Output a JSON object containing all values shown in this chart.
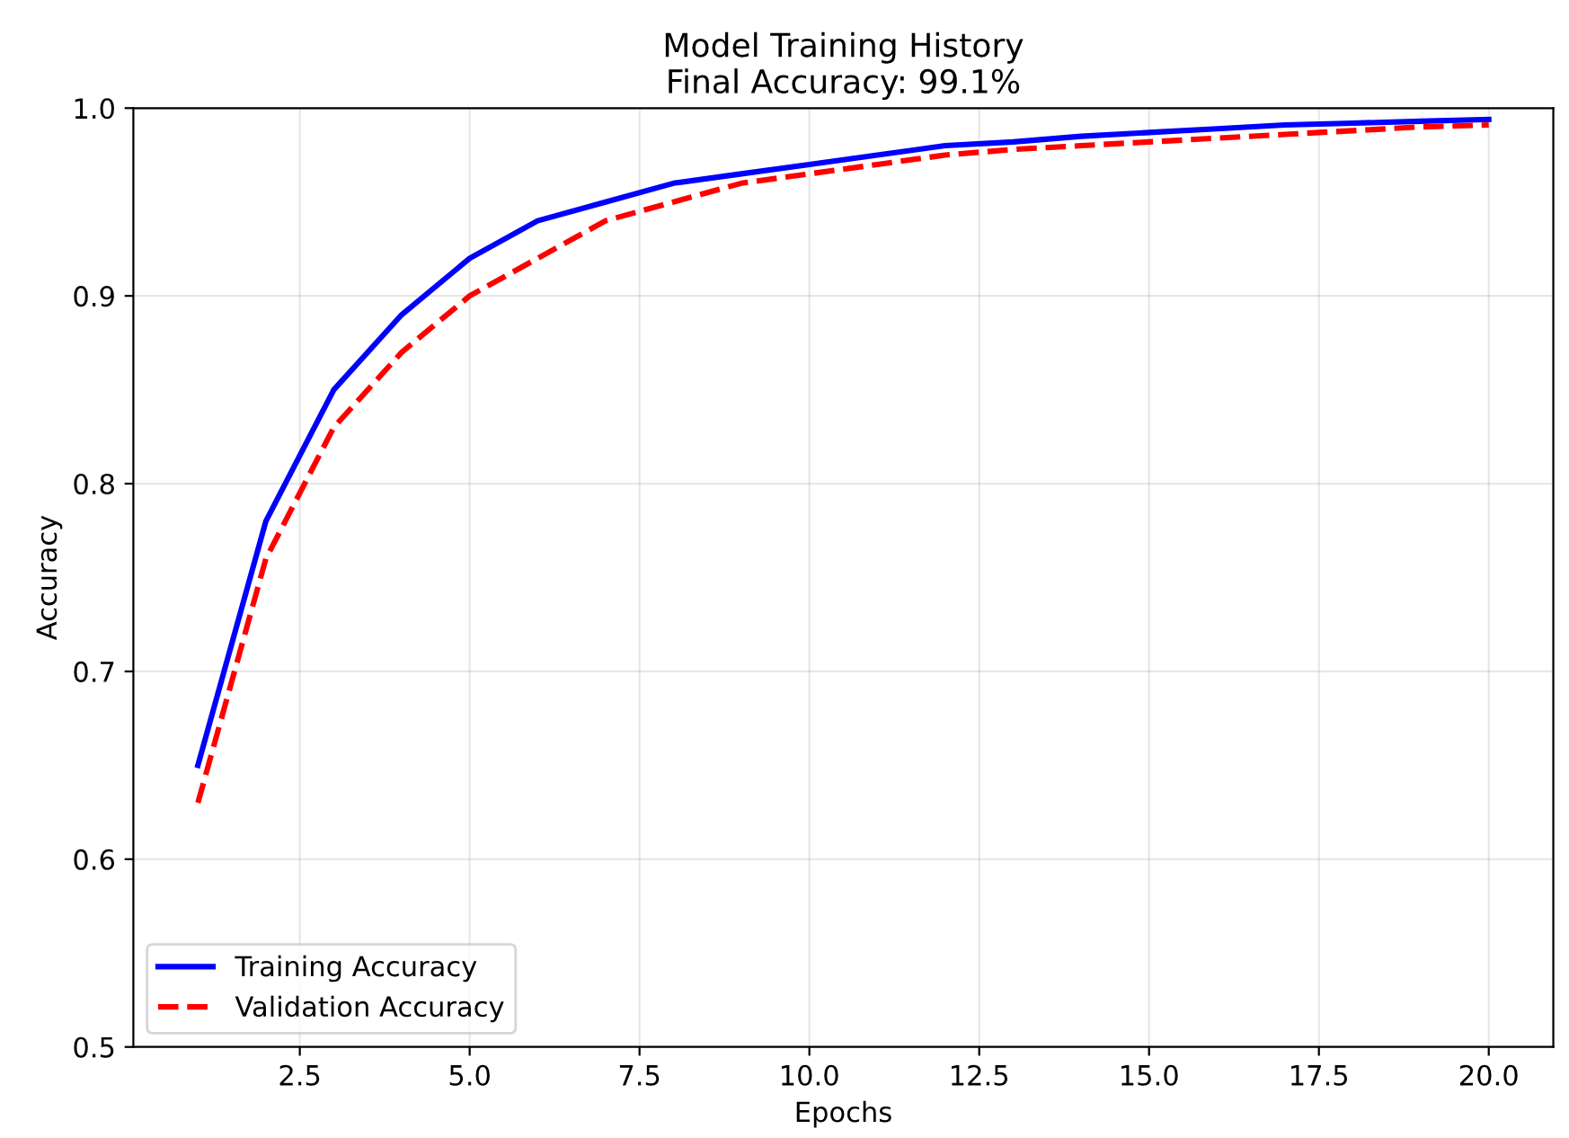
{
  "chart_data": {
    "type": "line",
    "title": "Model Training History\nFinal Accuracy: 99.1%",
    "xlabel": "Epochs",
    "ylabel": "Accuracy",
    "x": [
      1,
      2,
      3,
      4,
      5,
      6,
      7,
      8,
      9,
      10,
      11,
      12,
      13,
      14,
      15,
      16,
      17,
      18,
      19,
      20
    ],
    "series": [
      {
        "name": "Training Accuracy",
        "color": "#0000ff",
        "line_style": "solid",
        "values": [
          0.65,
          0.78,
          0.85,
          0.89,
          0.92,
          0.94,
          0.95,
          0.96,
          0.965,
          0.97,
          0.975,
          0.98,
          0.982,
          0.985,
          0.987,
          0.989,
          0.991,
          0.992,
          0.993,
          0.994
        ]
      },
      {
        "name": "Validation Accuracy",
        "color": "#ff0000",
        "line_style": "dashed",
        "values": [
          0.63,
          0.76,
          0.83,
          0.87,
          0.9,
          0.92,
          0.94,
          0.95,
          0.96,
          0.965,
          0.97,
          0.975,
          0.978,
          0.98,
          0.982,
          0.984,
          0.986,
          0.988,
          0.99,
          0.991
        ]
      }
    ],
    "xlim": [
      0.05,
      20.95
    ],
    "xticks": [
      2.5,
      {
        "value": 5,
        "label": "5.0"
      },
      7.5,
      {
        "value": 10,
        "label": "10.0"
      },
      12.5,
      {
        "value": 15,
        "label": "15.0"
      },
      17.5,
      {
        "value": 20,
        "label": "20.0"
      }
    ],
    "ylim": [
      0.5,
      1.0
    ],
    "yticks": [
      0.5,
      0.6,
      0.7,
      0.8,
      0.9,
      {
        "value": 1,
        "label": "1.0"
      }
    ],
    "grid": true,
    "legend": "bottom left"
  }
}
